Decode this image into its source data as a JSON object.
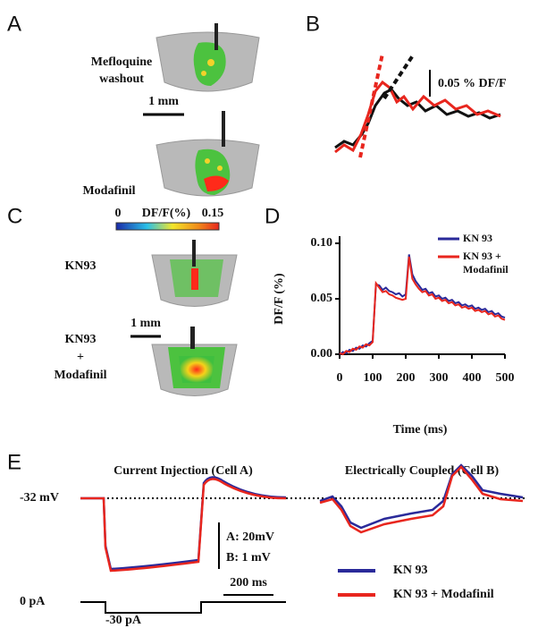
{
  "figure": {
    "panel_labels": [
      "A",
      "B",
      "C",
      "D",
      "E"
    ],
    "a": {
      "condition_1": [
        "Mefloquine",
        "washout"
      ],
      "scale": "1 mm",
      "condition_2": "Modafinil"
    },
    "b": {
      "scale": "0.05 % DF/F"
    },
    "c": {
      "colorbar_min": "0",
      "colorbar_title": "DF/F(%)",
      "colorbar_max": "0.15",
      "condition_1": "KN93",
      "scale": "1 mm",
      "condition_2": [
        "KN93",
        "+",
        "Modafinil"
      ]
    },
    "e": {
      "title_left": "Current Injection (Cell A)",
      "title_right": "Electrically Coupled (Cell B)",
      "holding": "-32 mV",
      "scale_a": "A: 20mV",
      "scale_b": "B: 1 mV",
      "scale_time": "200 ms",
      "current_0": "0 pA",
      "current_step": "-30 pA",
      "legend": [
        "KN 93",
        "KN 93 + Modafinil"
      ]
    }
  },
  "chart_data": {
    "type": "line",
    "xlabel": "Time (ms)",
    "ylabel": "DF/F (%)",
    "x": [
      0,
      10,
      20,
      30,
      40,
      50,
      60,
      70,
      80,
      90,
      100,
      110,
      120,
      130,
      140,
      150,
      160,
      170,
      180,
      190,
      200,
      210,
      220,
      230,
      240,
      250,
      260,
      270,
      280,
      290,
      300,
      310,
      320,
      330,
      340,
      350,
      360,
      370,
      380,
      390,
      400,
      410,
      420,
      430,
      440,
      450,
      460,
      470,
      480,
      490,
      500
    ],
    "series": [
      {
        "name": "KN 93",
        "color": "#2a2a9a",
        "values": [
          0.0,
          0.002,
          0.001,
          0.004,
          0.003,
          0.006,
          0.005,
          0.008,
          0.007,
          0.01,
          0.012,
          0.063,
          0.062,
          0.058,
          0.06,
          0.057,
          0.056,
          0.054,
          0.055,
          0.052,
          0.054,
          0.09,
          0.072,
          0.066,
          0.062,
          0.058,
          0.059,
          0.055,
          0.056,
          0.052,
          0.053,
          0.05,
          0.051,
          0.048,
          0.049,
          0.046,
          0.047,
          0.044,
          0.045,
          0.043,
          0.044,
          0.041,
          0.042,
          0.04,
          0.041,
          0.038,
          0.039,
          0.036,
          0.037,
          0.034,
          0.033
        ]
      },
      {
        "name": "KN 93 + Modafinil",
        "color": "#e8261e",
        "values": [
          0.001,
          0.0,
          0.003,
          0.002,
          0.005,
          0.004,
          0.007,
          0.006,
          0.009,
          0.008,
          0.011,
          0.064,
          0.06,
          0.056,
          0.057,
          0.054,
          0.053,
          0.051,
          0.05,
          0.049,
          0.05,
          0.088,
          0.068,
          0.063,
          0.059,
          0.056,
          0.057,
          0.053,
          0.054,
          0.05,
          0.051,
          0.048,
          0.049,
          0.046,
          0.047,
          0.044,
          0.045,
          0.042,
          0.043,
          0.041,
          0.042,
          0.039,
          0.04,
          0.038,
          0.039,
          0.036,
          0.037,
          0.034,
          0.035,
          0.032,
          0.031
        ]
      }
    ],
    "xlim": [
      0,
      500
    ],
    "xticks": [
      0,
      100,
      200,
      300,
      400,
      500
    ],
    "ylim": [
      0,
      0.1
    ],
    "yticks": [
      {
        "value": 0,
        "label": "0.00"
      },
      {
        "value": 0.05,
        "label": "0.05"
      },
      {
        "value": 0.1,
        "label": "0.10"
      }
    ]
  }
}
